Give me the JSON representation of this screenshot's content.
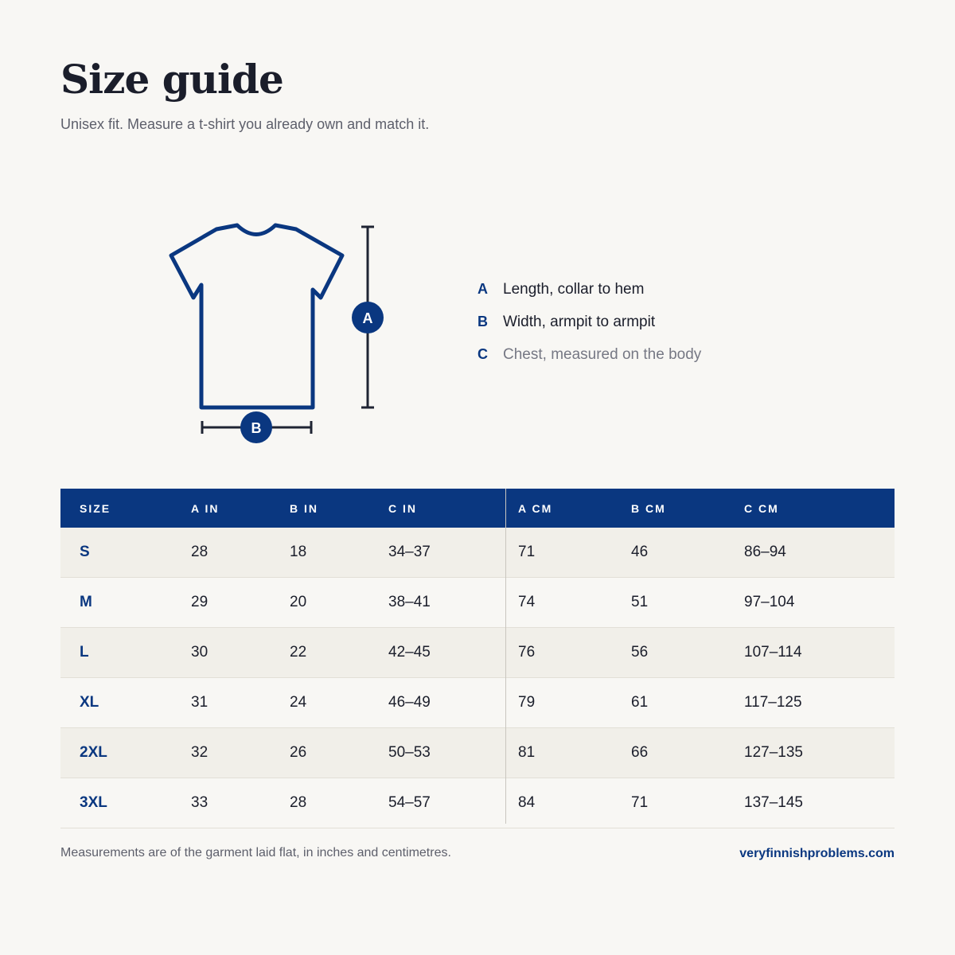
{
  "header": {
    "title": "Size guide",
    "subtitle": "Unisex fit. Measure a t-shirt you already own and match it."
  },
  "legend": [
    {
      "letter": "A",
      "text": "Length, collar to hem"
    },
    {
      "letter": "B",
      "text": "Width, armpit to armpit"
    },
    {
      "letter": "C",
      "text": "Chest, measured on the body"
    }
  ],
  "table": {
    "columns": [
      "SIZE",
      "A IN",
      "B IN",
      "C IN",
      "A CM",
      "B CM",
      "C CM"
    ],
    "rows": [
      [
        "S",
        "28",
        "18",
        "34–37",
        "71",
        "46",
        "86–94"
      ],
      [
        "M",
        "29",
        "20",
        "38–41",
        "74",
        "51",
        "97–104"
      ],
      [
        "L",
        "30",
        "22",
        "42–45",
        "76",
        "56",
        "107–114"
      ],
      [
        "XL",
        "31",
        "24",
        "46–49",
        "79",
        "61",
        "117–125"
      ],
      [
        "2XL",
        "32",
        "26",
        "50–53",
        "81",
        "66",
        "127–135"
      ],
      [
        "3XL",
        "33",
        "28",
        "54–57",
        "84",
        "71",
        "137–145"
      ]
    ]
  },
  "footer": {
    "note": "Measurements are of the garment laid flat, in inches and centimetres.",
    "site": "veryfinnishproblems.com"
  }
}
